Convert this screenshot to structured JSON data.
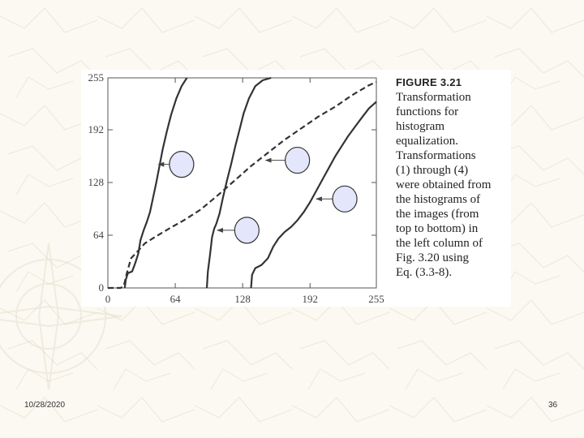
{
  "slide": {
    "date": "10/28/2020",
    "page_number": "36",
    "background_color": "#fbf9f1",
    "watermark_icon": "compass-rose-icon"
  },
  "caption": {
    "title": "FIGURE 3.21",
    "text": "Transformation functions for histogram equalization. Transformations (1) through (4) were obtained from the histograms of the images (from top to bottom) in the left column of Fig. 3.20 using Eq. (3.3-8).",
    "lines": [
      "Transformation",
      "functions for",
      "histogram",
      "equalization.",
      "Transformations",
      "(1) through (4)",
      "were obtained from",
      "the histograms of",
      "the images (from",
      "top to bottom) in",
      "the left column of",
      "Fig. 3.20 using",
      "Eq. (3.3-8)."
    ]
  },
  "chart_data": {
    "type": "line",
    "title": "",
    "xlabel": "",
    "ylabel": "",
    "xlim": [
      0,
      255
    ],
    "ylim": [
      0,
      255
    ],
    "xticks": [
      0,
      64,
      128,
      192,
      255
    ],
    "yticks": [
      0,
      64,
      128,
      192,
      255
    ],
    "x_tick_labels": [
      "0",
      "64",
      "128",
      "192",
      "255"
    ],
    "y_tick_labels": [
      "0",
      "64",
      "128",
      "192",
      "255"
    ],
    "grid": false,
    "legend": "none",
    "series": [
      {
        "style": "solid",
        "color": "#333333",
        "points": [
          [
            16,
            0
          ],
          [
            17,
            10
          ],
          [
            19,
            18
          ],
          [
            23,
            20
          ],
          [
            26,
            30
          ],
          [
            29,
            42
          ],
          [
            31,
            58
          ],
          [
            34,
            70
          ],
          [
            37,
            80
          ],
          [
            40,
            92
          ],
          [
            43,
            110
          ],
          [
            46,
            128
          ],
          [
            49,
            148
          ],
          [
            52,
            168
          ],
          [
            56,
            190
          ],
          [
            60,
            210
          ],
          [
            65,
            230
          ],
          [
            70,
            245
          ],
          [
            75,
            255
          ]
        ]
      },
      {
        "style": "solid",
        "color": "#333333",
        "points": [
          [
            94,
            0
          ],
          [
            95,
            20
          ],
          [
            97,
            40
          ],
          [
            99,
            62
          ],
          [
            101,
            72
          ],
          [
            103,
            78
          ],
          [
            106,
            90
          ],
          [
            109,
            108
          ],
          [
            113,
            130
          ],
          [
            117,
            150
          ],
          [
            121,
            172
          ],
          [
            125,
            192
          ],
          [
            129,
            212
          ],
          [
            134,
            230
          ],
          [
            140,
            245
          ],
          [
            147,
            252
          ],
          [
            155,
            255
          ]
        ]
      },
      {
        "style": "dashed",
        "color": "#333333",
        "points": [
          [
            0,
            0
          ],
          [
            12,
            0
          ],
          [
            15,
            2
          ],
          [
            18,
            18
          ],
          [
            22,
            36
          ],
          [
            28,
            44
          ],
          [
            35,
            54
          ],
          [
            45,
            62
          ],
          [
            58,
            72
          ],
          [
            72,
            82
          ],
          [
            88,
            95
          ],
          [
            104,
            112
          ],
          [
            120,
            130
          ],
          [
            136,
            148
          ],
          [
            152,
            164
          ],
          [
            168,
            180
          ],
          [
            184,
            194
          ],
          [
            200,
            208
          ],
          [
            216,
            220
          ],
          [
            232,
            234
          ],
          [
            248,
            246
          ],
          [
            255,
            250
          ]
        ]
      },
      {
        "style": "solid",
        "color": "#333333",
        "points": [
          [
            136,
            0
          ],
          [
            137,
            16
          ],
          [
            140,
            24
          ],
          [
            146,
            28
          ],
          [
            152,
            36
          ],
          [
            157,
            50
          ],
          [
            162,
            60
          ],
          [
            168,
            68
          ],
          [
            174,
            74
          ],
          [
            180,
            82
          ],
          [
            186,
            92
          ],
          [
            192,
            104
          ],
          [
            198,
            118
          ],
          [
            204,
            132
          ],
          [
            210,
            146
          ],
          [
            216,
            160
          ],
          [
            222,
            172
          ],
          [
            228,
            184
          ],
          [
            235,
            196
          ],
          [
            242,
            208
          ],
          [
            248,
            218
          ],
          [
            255,
            226
          ]
        ]
      }
    ],
    "annotations": [
      {
        "type": "callout-circle",
        "x": 70,
        "y": 150,
        "arrow_to": [
          48,
          150
        ]
      },
      {
        "type": "callout-circle",
        "x": 180,
        "y": 155,
        "arrow_to": [
          150,
          155
        ]
      },
      {
        "type": "callout-circle",
        "x": 132,
        "y": 70,
        "arrow_to": [
          104,
          70
        ]
      },
      {
        "type": "callout-circle",
        "x": 225,
        "y": 108,
        "arrow_to": [
          198,
          108
        ]
      }
    ],
    "callout_color": "#e4e6fb"
  }
}
